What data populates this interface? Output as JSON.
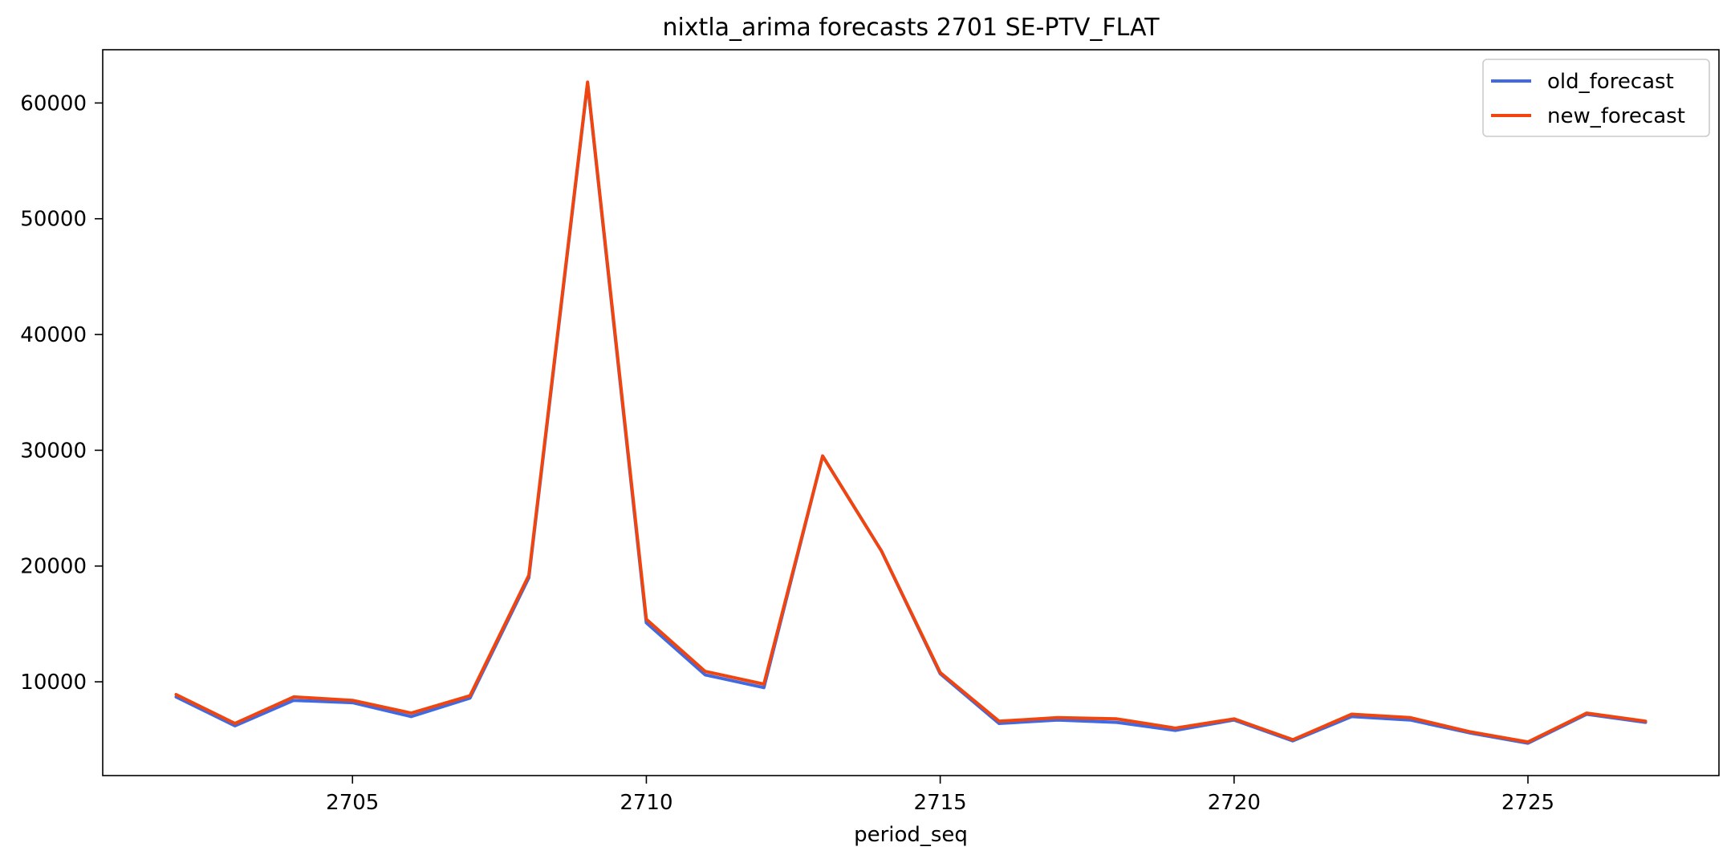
{
  "chart_data": {
    "type": "line",
    "title": "nixtla_arima forecasts 2701 SE-PTV_FLAT",
    "xlabel": "period_seq",
    "ylabel": "",
    "x": [
      2702,
      2703,
      2704,
      2705,
      2706,
      2707,
      2708,
      2709,
      2710,
      2711,
      2712,
      2713,
      2714,
      2715,
      2716,
      2717,
      2718,
      2719,
      2720,
      2721,
      2722,
      2723,
      2724,
      2725,
      2726,
      2727
    ],
    "xlim": [
      2700.75,
      2728.25
    ],
    "ylim": [
      1900,
      64600
    ],
    "xticks": [
      2705,
      2710,
      2715,
      2720,
      2725
    ],
    "xtick_labels": [
      "2705",
      "2710",
      "2715",
      "2720",
      "2725"
    ],
    "yticks": [
      10000,
      20000,
      30000,
      40000,
      50000,
      60000
    ],
    "ytick_labels": [
      "10000",
      "20000",
      "30000",
      "40000",
      "50000",
      "60000"
    ],
    "grid": false,
    "legend_position": "top-right",
    "series": [
      {
        "name": "old_forecast",
        "color": "#4169e1",
        "values": [
          8700,
          6200,
          8400,
          8200,
          7000,
          8600,
          19000,
          61700,
          15100,
          10600,
          9500,
          29500,
          21300,
          10700,
          6400,
          6700,
          6500,
          5800,
          6700,
          4900,
          7000,
          6700,
          5600,
          4700,
          7200,
          6500
        ]
      },
      {
        "name": "new_forecast",
        "color": "#f0450f",
        "values": [
          8900,
          6400,
          8700,
          8400,
          7300,
          8800,
          19200,
          61800,
          15400,
          10900,
          9800,
          29500,
          21300,
          10800,
          6600,
          6900,
          6800,
          6000,
          6800,
          5000,
          7200,
          6900,
          5700,
          4800,
          7300,
          6600
        ]
      }
    ]
  }
}
